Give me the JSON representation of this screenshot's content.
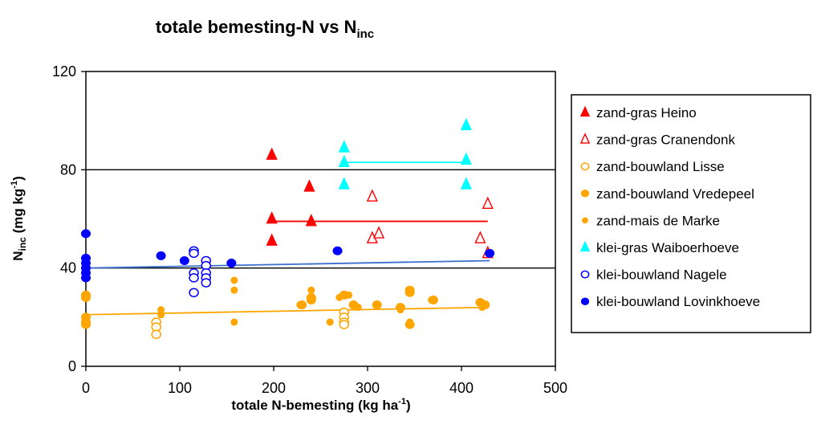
{
  "chart_data": {
    "type": "scatter",
    "title": {
      "main": "totale bemesting-N vs N",
      "subscript": "inc"
    },
    "xlabel": {
      "main": "totale N-bemesting (kg ha",
      "superscript": "-1",
      "suffix": ")"
    },
    "ylabel": {
      "main": "N",
      "subscript": "inc",
      "middle": " (mg kg",
      "superscript": "-1",
      "suffix": ")"
    },
    "xlim": [
      0,
      500
    ],
    "ylim": [
      0,
      120
    ],
    "xticks": [
      "0",
      "100",
      "200",
      "300",
      "400",
      "500"
    ],
    "yticks": [
      "0",
      "40",
      "80",
      "120"
    ],
    "gridlines_y": [
      40,
      80
    ],
    "legend_position": "right",
    "series": [
      {
        "name": "zand-gras Heino",
        "marker": "triangle",
        "filled": true,
        "color": "#ff0000",
        "points": [
          [
            198,
            86
          ],
          [
            198,
            60
          ],
          [
            198,
            51
          ],
          [
            238,
            73
          ],
          [
            240,
            59
          ],
          [
            428,
            46
          ]
        ],
        "trendline": [
          [
            198,
            59
          ],
          [
            428,
            59
          ]
        ]
      },
      {
        "name": "zand-gras Cranendonk",
        "marker": "triangle",
        "filled": false,
        "color": "#ff0000",
        "points": [
          [
            305,
            69
          ],
          [
            305,
            52
          ],
          [
            312,
            54
          ],
          [
            420,
            52
          ],
          [
            428,
            66
          ],
          [
            428,
            46
          ]
        ]
      },
      {
        "name": "zand-bouwland Lisse",
        "marker": "circle",
        "filled": false,
        "color": "#ffa500",
        "points": [
          [
            75,
            18
          ],
          [
            75,
            16
          ],
          [
            75,
            13
          ],
          [
            275,
            22
          ],
          [
            275,
            20
          ],
          [
            275,
            18
          ],
          [
            275,
            17
          ]
        ]
      },
      {
        "name": "zand-bouwland Vredepeel",
        "marker": "circle",
        "filled": true,
        "color": "#ffa500",
        "points": [
          [
            0,
            29
          ],
          [
            0,
            28
          ],
          [
            0,
            20
          ],
          [
            0,
            18
          ],
          [
            0,
            17
          ],
          [
            230,
            25
          ],
          [
            240,
            28
          ],
          [
            240,
            27
          ],
          [
            275,
            29
          ],
          [
            285,
            25
          ],
          [
            310,
            25
          ],
          [
            335,
            24
          ],
          [
            345,
            31
          ],
          [
            345,
            30
          ],
          [
            345,
            17
          ],
          [
            370,
            27
          ],
          [
            420,
            26
          ],
          [
            425,
            25
          ]
        ],
        "trendline": [
          [
            0,
            21
          ],
          [
            428,
            24
          ]
        ]
      },
      {
        "name": "zand-mais de Marke",
        "marker": "circle-small",
        "filled": true,
        "color": "#ffa500",
        "points": [
          [
            0,
            20
          ],
          [
            0,
            17
          ],
          [
            80,
            23
          ],
          [
            80,
            21
          ],
          [
            158,
            35
          ],
          [
            158,
            31
          ],
          [
            158,
            18
          ],
          [
            228,
            25
          ],
          [
            240,
            31
          ],
          [
            260,
            18
          ],
          [
            270,
            28
          ],
          [
            280,
            29
          ],
          [
            290,
            24
          ],
          [
            335,
            23
          ],
          [
            345,
            18
          ],
          [
            368,
            27
          ],
          [
            422,
            24
          ]
        ]
      },
      {
        "name": "klei-gras Waiboerhoeve",
        "marker": "triangle",
        "filled": true,
        "color": "#00ffff",
        "points": [
          [
            275,
            89
          ],
          [
            275,
            83
          ],
          [
            275,
            74
          ],
          [
            405,
            98
          ],
          [
            405,
            84
          ],
          [
            405,
            74
          ]
        ],
        "trendline": [
          [
            275,
            83
          ],
          [
            405,
            83
          ]
        ]
      },
      {
        "name": "klei-bouwland Nagele",
        "marker": "circle",
        "filled": false,
        "color": "#0000ff",
        "points": [
          [
            115,
            47
          ],
          [
            115,
            46
          ],
          [
            115,
            38
          ],
          [
            115,
            36
          ],
          [
            115,
            30
          ],
          [
            128,
            43
          ],
          [
            128,
            41
          ],
          [
            128,
            38
          ],
          [
            128,
            36
          ],
          [
            128,
            34
          ]
        ]
      },
      {
        "name": "klei-bouwland Lovinkhoeve",
        "marker": "circle",
        "filled": true,
        "color": "#0000ff",
        "points": [
          [
            0,
            54
          ],
          [
            0,
            44
          ],
          [
            0,
            42
          ],
          [
            0,
            40
          ],
          [
            0,
            38
          ],
          [
            0,
            36
          ],
          [
            80,
            45
          ],
          [
            105,
            43
          ],
          [
            155,
            42
          ],
          [
            268,
            47
          ],
          [
            430,
            46
          ]
        ],
        "trendline": [
          [
            0,
            40
          ],
          [
            430,
            43
          ]
        ],
        "trendline_color": "#3a6fd0"
      }
    ]
  }
}
